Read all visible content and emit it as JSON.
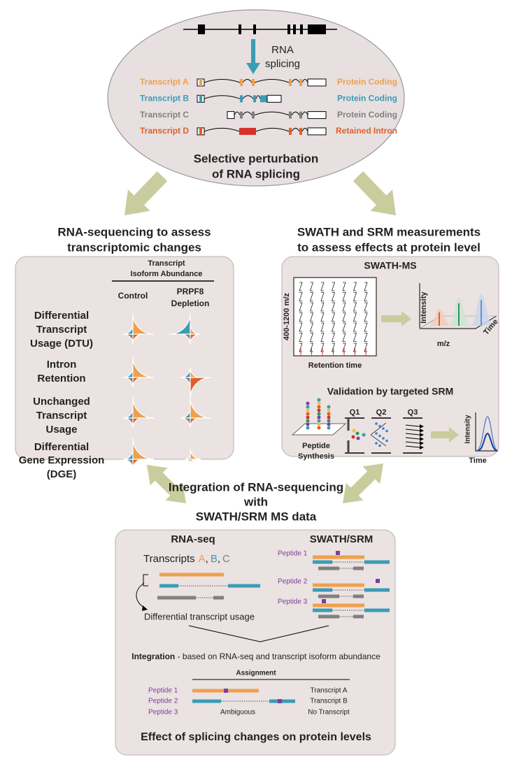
{
  "top": {
    "splicing_label": [
      "RNA",
      "splicing"
    ],
    "transcripts": [
      {
        "name": "Transcript A",
        "type": "Protein Coding"
      },
      {
        "name": "Transcript B",
        "type": "Protein Coding"
      },
      {
        "name": "Transcript C",
        "type": "Protein Coding"
      },
      {
        "name": "Transcript D",
        "type": "Retained Intron"
      }
    ],
    "caption": [
      "Selective perturbation",
      "of RNA splicing"
    ]
  },
  "left_heading": [
    "RNA-sequencing to assess",
    "transcriptomic changes"
  ],
  "right_heading": [
    "SWATH and SRM measurements",
    "to assess effects at protein level"
  ],
  "left_panel": {
    "column_header": [
      "Transcript",
      "Isoform Abundance"
    ],
    "control": "Control",
    "depletion": [
      "PRPF8",
      "Depletion"
    ],
    "rows": [
      [
        "Differential",
        "Transcript",
        "Usage (DTU)"
      ],
      [
        "Intron",
        "Retention"
      ],
      [
        "Unchanged",
        "Transcript",
        "Usage"
      ],
      [
        "Differential",
        "Gene Expression",
        "(DGE)"
      ]
    ]
  },
  "right_panel": {
    "swath_title": "SWATH-MS",
    "y_axis": "400-1200 m/z",
    "x_axis": "Retention time",
    "intensity": "Intensity",
    "mz": "m/z",
    "time": "Time",
    "srm_title": "Validation by targeted SRM",
    "synthesis": [
      "Peptide",
      "Synthesis"
    ],
    "quads": [
      "Q1",
      "Q2",
      "Q3"
    ],
    "srm_intensity": "Intensity",
    "srm_time": "Time"
  },
  "integration_heading": [
    "Integration of RNA-sequencing",
    "with",
    "SWATH/SRM MS data"
  ],
  "bottom_panel": {
    "rnaseq_title": "RNA-seq",
    "swath_title": "SWATH/SRM",
    "transcripts_word": "Transcripts",
    "letters": [
      "A",
      "B",
      "C"
    ],
    "separator": ",",
    "dtu_caption": "Differential transcript usage",
    "peptides": [
      "Peptide 1",
      "Peptide 2",
      "Peptide 3"
    ],
    "integration_bold": "Integration",
    "integration_rest": " - based on RNA-seq and transcript isoform abundance",
    "assignment_title": "Assignment",
    "assignments": [
      {
        "peptide": "Peptide 1",
        "transcript": "Transcript A"
      },
      {
        "peptide": "Peptide 2",
        "transcript": "Transcript B"
      },
      {
        "peptide": "Peptide 3",
        "middle": "Ambiguous",
        "transcript": "No Transcript"
      }
    ],
    "conclusion": "Effect of splicing changes on protein levels"
  }
}
